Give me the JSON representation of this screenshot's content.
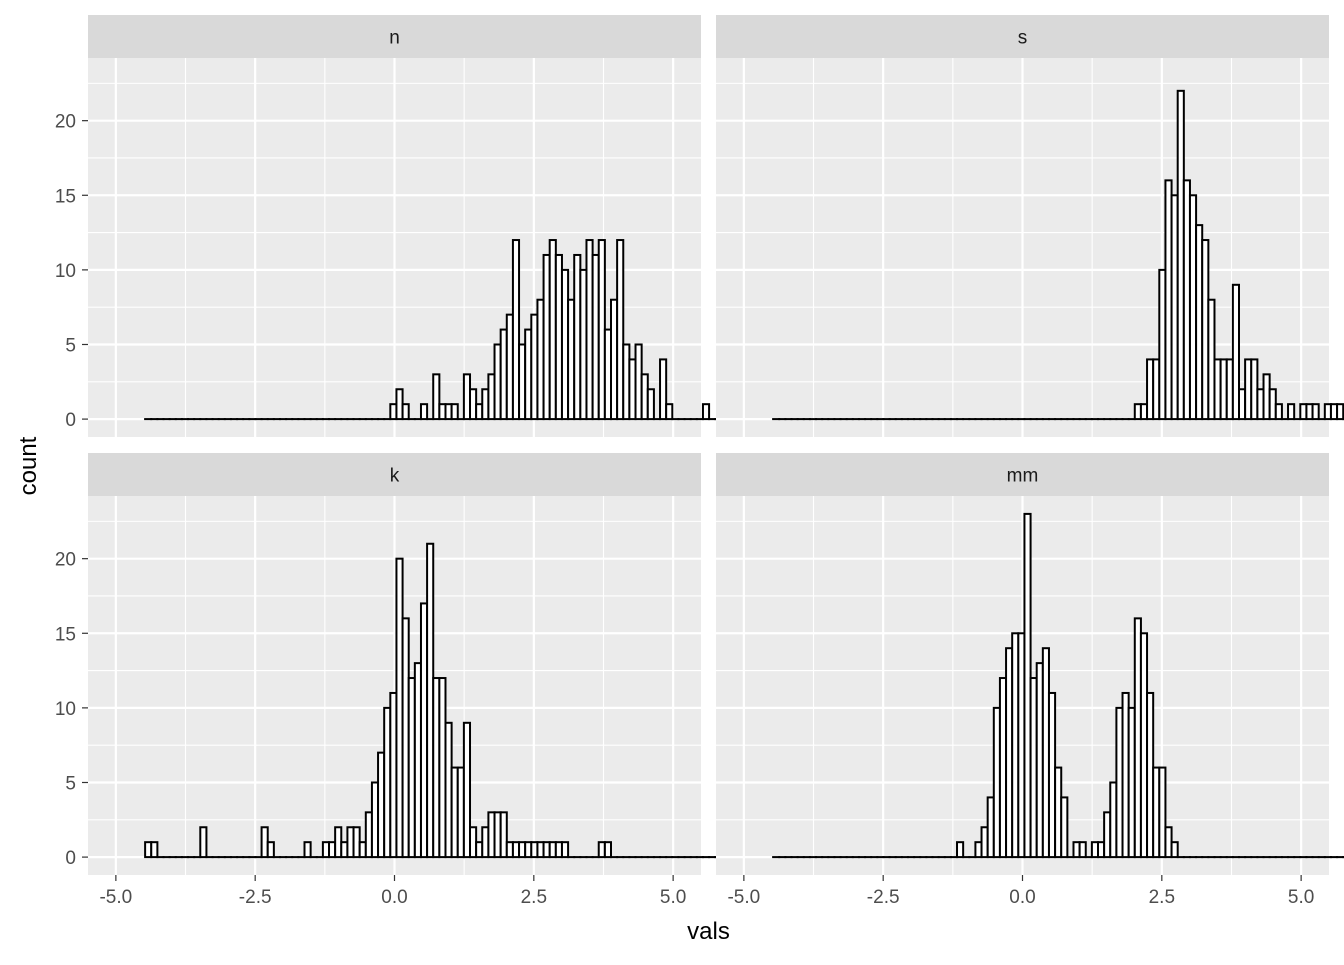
{
  "chart_data": {
    "type": "histogram",
    "layout": "facet_wrap 2x2",
    "xlabel": "vals",
    "ylabel": "count",
    "xlim": [
      -5.5,
      5.5
    ],
    "ylim": [
      -1.2,
      24.2
    ],
    "x_breaks": [
      -5.0,
      -2.5,
      0.0,
      2.5,
      5.0
    ],
    "x_tick_labels": [
      "-5.0",
      "-2.5",
      "0.0",
      "2.5",
      "5.0"
    ],
    "y_breaks": [
      0,
      5,
      10,
      15,
      20
    ],
    "y_tick_labels": [
      "0",
      "5",
      "10",
      "15",
      "20"
    ],
    "bin_start": -4.475,
    "bin_width": 0.11,
    "n_bins": 100,
    "grid": true,
    "colors": {
      "panel_bg": "#ebebeb",
      "strip_bg": "#d9d9d9",
      "grid": "#ffffff",
      "bar_fill": "#ffffff",
      "bar_outline": "#000000"
    },
    "panels": [
      {
        "name": "n",
        "counts": [
          0,
          0,
          0,
          0,
          0,
          0,
          0,
          0,
          0,
          0,
          0,
          0,
          0,
          0,
          0,
          0,
          0,
          0,
          0,
          0,
          0,
          0,
          0,
          0,
          0,
          0,
          0,
          0,
          0,
          0,
          0,
          0,
          0,
          0,
          0,
          0,
          0,
          0,
          0,
          0,
          1,
          2,
          1,
          0,
          0,
          1,
          0,
          3,
          1,
          1,
          1,
          0,
          3,
          2,
          1,
          2,
          3,
          5,
          6,
          7,
          12,
          5,
          6,
          7,
          8,
          11,
          12,
          11,
          10,
          8,
          11,
          10,
          12,
          11,
          12,
          6,
          8,
          12,
          5,
          4,
          5,
          3,
          2,
          0,
          4,
          1,
          0,
          0,
          0,
          0,
          0,
          1,
          0,
          0,
          0,
          0,
          0,
          0,
          0,
          0
        ]
      },
      {
        "name": "s",
        "counts": [
          0,
          0,
          0,
          0,
          0,
          0,
          0,
          0,
          0,
          0,
          0,
          0,
          0,
          0,
          0,
          0,
          0,
          0,
          0,
          0,
          0,
          0,
          0,
          0,
          0,
          0,
          0,
          0,
          0,
          0,
          0,
          0,
          0,
          0,
          0,
          0,
          0,
          0,
          0,
          0,
          0,
          0,
          0,
          0,
          0,
          0,
          0,
          0,
          0,
          0,
          0,
          0,
          0,
          0,
          0,
          0,
          0,
          0,
          0,
          1,
          1,
          4,
          4,
          10,
          16,
          15,
          22,
          16,
          15,
          13,
          12,
          8,
          4,
          4,
          4,
          9,
          2,
          4,
          4,
          2,
          3,
          2,
          1,
          0,
          1,
          0,
          1,
          1,
          1,
          0,
          1,
          1,
          1,
          0,
          1,
          0,
          0,
          0,
          0,
          1
        ]
      },
      {
        "name": "k",
        "counts": [
          1,
          1,
          0,
          0,
          0,
          0,
          0,
          0,
          0,
          2,
          0,
          0,
          0,
          0,
          0,
          0,
          0,
          0,
          0,
          2,
          1,
          0,
          0,
          0,
          0,
          0,
          1,
          0,
          0,
          1,
          1,
          2,
          1,
          2,
          2,
          1,
          3,
          5,
          7,
          10,
          11,
          20,
          16,
          12,
          13,
          17,
          21,
          12,
          12,
          9,
          6,
          6,
          9,
          2,
          1,
          2,
          3,
          3,
          3,
          1,
          1,
          1,
          1,
          1,
          1,
          1,
          1,
          1,
          1,
          0,
          0,
          0,
          0,
          0,
          1,
          1,
          0,
          0,
          0,
          0,
          0,
          0,
          0,
          0,
          0,
          0,
          0,
          0,
          0,
          0,
          0,
          0,
          0,
          0,
          0,
          0,
          0,
          0,
          0,
          0
        ]
      },
      {
        "name": "mm",
        "counts": [
          0,
          0,
          0,
          0,
          0,
          0,
          0,
          0,
          0,
          0,
          0,
          0,
          0,
          0,
          0,
          0,
          0,
          0,
          0,
          0,
          0,
          0,
          0,
          0,
          0,
          0,
          0,
          0,
          0,
          0,
          1,
          0,
          0,
          1,
          2,
          4,
          10,
          12,
          14,
          15,
          15,
          23,
          12,
          13,
          14,
          11,
          6,
          4,
          0,
          1,
          1,
          0,
          1,
          1,
          3,
          5,
          10,
          11,
          10,
          16,
          15,
          11,
          6,
          6,
          2,
          1,
          0,
          0,
          0,
          0,
          0,
          0,
          0,
          0,
          0,
          0,
          0,
          0,
          0,
          0,
          0,
          0,
          0,
          0,
          0,
          0,
          0,
          0,
          0,
          0,
          0,
          0,
          0,
          0,
          0,
          0,
          0,
          0,
          0,
          0
        ]
      }
    ]
  }
}
